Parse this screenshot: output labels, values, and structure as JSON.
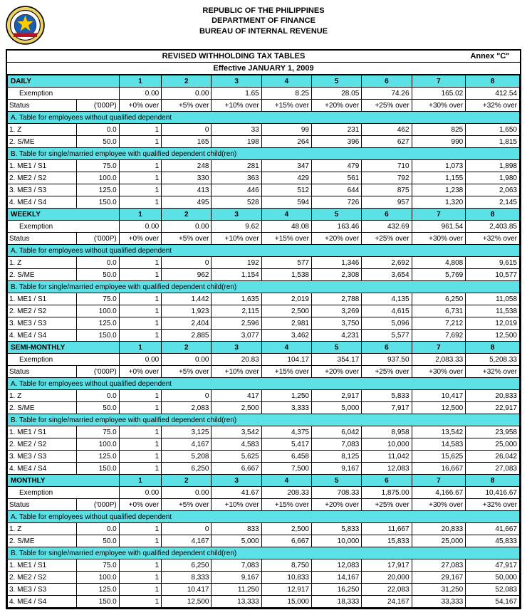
{
  "header": {
    "line1": "REPUBLIC OF THE PHILIPPINES",
    "line2": "DEPARTMENT OF FINANCE",
    "line3": "BUREAU OF INTERNAL REVENUE"
  },
  "title": "REVISED WITHHOLDING TAX TABLES",
  "annex": "Annex \"C\"",
  "effective": "Effective JANUARY 1, 2009",
  "columns": [
    "1",
    "2",
    "3",
    "4",
    "5",
    "6",
    "7",
    "8"
  ],
  "status_label": "Status",
  "thousand_p": "('000P)",
  "exemption_label": "Exemption",
  "section_a": "A. Table for employees without qualified dependent",
  "section_b": "B. Table for single/married employee with qualified dependent child(ren)",
  "row_labels": {
    "z": "1. Z",
    "sme": "2. S/ME",
    "me1": "1. ME1 / S1",
    "me2": "2. ME2 / S2",
    "me3": "3. ME3 / S3",
    "me4": "4. ME4 / S4"
  },
  "exempt_amounts": {
    "z": "0.0",
    "sme": "50.0",
    "me1": "75.0",
    "me2": "100.0",
    "me3": "125.0",
    "me4": "150.0"
  },
  "colors": {
    "highlight": "#5ce1e6",
    "border": "#000000",
    "background": "#ffffff",
    "text": "#000000"
  },
  "periods": [
    {
      "name": "DAILY",
      "exemption": [
        "0.00",
        "0.00",
        "1.65",
        "8.25",
        "28.05",
        "74.26",
        "165.02",
        "412.54"
      ],
      "status": [
        "+0% over",
        "+5% over",
        "+10% over",
        "+15% over",
        "+20% over",
        "+25% over",
        "+30% over",
        "+32% over"
      ],
      "a": {
        "z": [
          "1",
          "0",
          "33",
          "99",
          "231",
          "462",
          "825",
          "1,650"
        ],
        "sme": [
          "1",
          "165",
          "198",
          "264",
          "396",
          "627",
          "990",
          "1,815"
        ]
      },
      "b": {
        "me1": [
          "1",
          "248",
          "281",
          "347",
          "479",
          "710",
          "1,073",
          "1,898"
        ],
        "me2": [
          "1",
          "330",
          "363",
          "429",
          "561",
          "792",
          "1,155",
          "1,980"
        ],
        "me3": [
          "1",
          "413",
          "446",
          "512",
          "644",
          "875",
          "1,238",
          "2,063"
        ],
        "me4": [
          "1",
          "495",
          "528",
          "594",
          "726",
          "957",
          "1,320",
          "2,145"
        ]
      }
    },
    {
      "name": "WEEKLY",
      "exemption": [
        "0.00",
        "0.00",
        "9.62",
        "48.08",
        "163.46",
        "432.69",
        "961.54",
        "2,403.85"
      ],
      "status": [
        "+0% over",
        "+5% over",
        "+10% over",
        "+15% over",
        "+20% over",
        "+25% over",
        "+30% over",
        "+32% over"
      ],
      "a": {
        "z": [
          "1",
          "0",
          "192",
          "577",
          "1,346",
          "2,692",
          "4,808",
          "9,615"
        ],
        "sme": [
          "1",
          "962",
          "1,154",
          "1,538",
          "2,308",
          "3,654",
          "5,769",
          "10,577"
        ]
      },
      "b": {
        "me1": [
          "1",
          "1,442",
          "1,635",
          "2,019",
          "2,788",
          "4,135",
          "6,250",
          "11,058"
        ],
        "me2": [
          "1",
          "1,923",
          "2,115",
          "2,500",
          "3,269",
          "4,615",
          "6,731",
          "11,538"
        ],
        "me3": [
          "1",
          "2,404",
          "2,596",
          "2,981",
          "3,750",
          "5,096",
          "7,212",
          "12,019"
        ],
        "me4": [
          "1",
          "2,885",
          "3,077",
          "3,462",
          "4,231",
          "5,577",
          "7,692",
          "12,500"
        ]
      }
    },
    {
      "name": "SEMI-MONTHLY",
      "exemption": [
        "0.00",
        "0.00",
        "20.83",
        "104.17",
        "354.17",
        "937.50",
        "2,083.33",
        "5,208.33"
      ],
      "status": [
        "+0% over",
        "+5% over",
        "+10% over",
        "+15% over",
        "+20% over",
        "+25% over",
        "+30% over",
        "+32% over"
      ],
      "a": {
        "z": [
          "1",
          "0",
          "417",
          "1,250",
          "2,917",
          "5,833",
          "10,417",
          "20,833"
        ],
        "sme": [
          "1",
          "2,083",
          "2,500",
          "3,333",
          "5,000",
          "7,917",
          "12,500",
          "22,917"
        ]
      },
      "b": {
        "me1": [
          "1",
          "3,125",
          "3,542",
          "4,375",
          "6,042",
          "8,958",
          "13,542",
          "23,958"
        ],
        "me2": [
          "1",
          "4,167",
          "4,583",
          "5,417",
          "7,083",
          "10,000",
          "14,583",
          "25,000"
        ],
        "me3": [
          "1",
          "5,208",
          "5,625",
          "6,458",
          "8,125",
          "11,042",
          "15,625",
          "26,042"
        ],
        "me4": [
          "1",
          "6,250",
          "6,667",
          "7,500",
          "9,167",
          "12,083",
          "16,667",
          "27,083"
        ]
      }
    },
    {
      "name": "MONTHLY",
      "exemption": [
        "0.00",
        "0.00",
        "41.67",
        "208.33",
        "708.33",
        "1,875.00",
        "4,166.67",
        "10,416.67"
      ],
      "status": [
        "+0% over",
        "+5% over",
        "+10% over",
        "+15% over",
        "+20% over",
        "+25% over",
        "+30% over",
        "+32% over"
      ],
      "a": {
        "z": [
          "1",
          "0",
          "833",
          "2,500",
          "5,833",
          "11,667",
          "20,833",
          "41,667"
        ],
        "sme": [
          "1",
          "4,167",
          "5,000",
          "6,667",
          "10,000",
          "15,833",
          "25,000",
          "45,833"
        ]
      },
      "b": {
        "me1": [
          "1",
          "6,250",
          "7,083",
          "8,750",
          "12,083",
          "17,917",
          "27,083",
          "47,917"
        ],
        "me2": [
          "1",
          "8,333",
          "9,167",
          "10,833",
          "14,167",
          "20,000",
          "29,167",
          "50,000"
        ],
        "me3": [
          "1",
          "10,417",
          "11,250",
          "12,917",
          "16,250",
          "22,083",
          "31,250",
          "52,083"
        ],
        "me4": [
          "1",
          "12,500",
          "13,333",
          "15,000",
          "18,333",
          "24,167",
          "33,333",
          "54,167"
        ]
      }
    }
  ]
}
